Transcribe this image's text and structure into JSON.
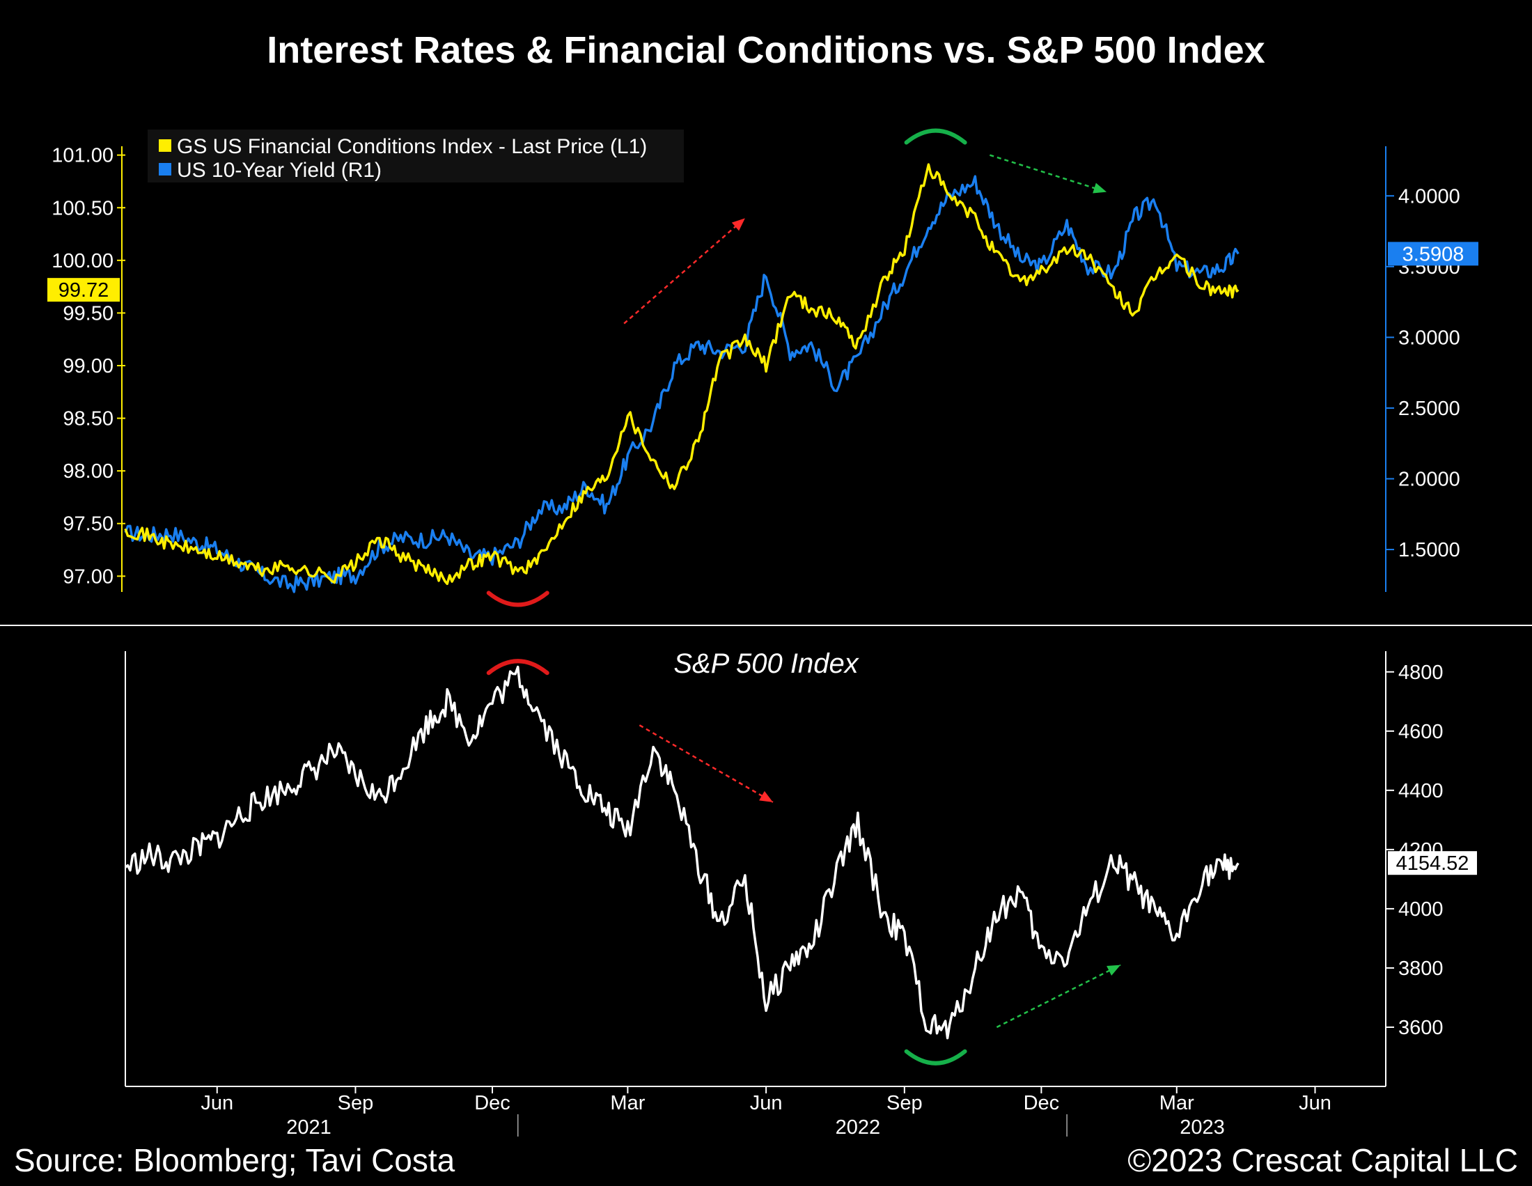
{
  "title": "Interest Rates & Financial Conditions vs. S&P 500 Index",
  "footer": {
    "source": "Source: Bloomberg; Tavi Costa",
    "copyright": "©2023 Crescat Capital LLC"
  },
  "colors": {
    "background": "#000000",
    "fci": "#ffee00",
    "yield": "#1a7ff0",
    "sp500": "#ffffff",
    "arrow_red": "#ff2a2a",
    "arrow_green": "#22c24a",
    "arc_red": "#e01a1a",
    "arc_green": "#16b04a"
  },
  "legend": {
    "items": [
      {
        "label": "GS US Financial Conditions Index - Last Price (L1)",
        "color": "#ffee00"
      },
      {
        "label": "US 10-Year Yield (R1)",
        "color": "#1a7ff0"
      }
    ],
    "position": "top-left"
  },
  "chart_data": [
    {
      "type": "line",
      "panel": "top",
      "title": "",
      "x_range": [
        "2021-04-15",
        "2023-08-01"
      ],
      "x_ticks": [
        "Jun",
        "Sep",
        "Dec",
        "Mar",
        "Jun",
        "Sep",
        "Dec",
        "Mar",
        "Jun"
      ],
      "x_years": [
        "2021",
        "2022",
        "2023"
      ],
      "left_axis": {
        "ticks": [
          "97.00",
          "97.50",
          "98.00",
          "98.50",
          "99.00",
          "99.50",
          "100.00",
          "100.50",
          "101.00"
        ],
        "ylim": [
          96.85,
          101.15
        ]
      },
      "right_axis": {
        "ticks": [
          "1.5000",
          "2.0000",
          "2.5000",
          "3.0000",
          "3.5000",
          "4.0000"
        ],
        "ylim": [
          1.2,
          4.4
        ]
      },
      "series": [
        {
          "name": "GS US Financial Conditions Index - Last Price (L1)",
          "axis": "left",
          "last_value": "99.72",
          "points": [
            [
              "2021-04-15",
              97.45
            ],
            [
              "2021-05-01",
              97.38
            ],
            [
              "2021-05-15",
              97.3
            ],
            [
              "2021-06-01",
              97.25
            ],
            [
              "2021-06-15",
              97.18
            ],
            [
              "2021-07-01",
              97.12
            ],
            [
              "2021-07-15",
              97.05
            ],
            [
              "2021-08-01",
              97.1
            ],
            [
              "2021-08-15",
              97.04
            ],
            [
              "2021-09-01",
              97.0
            ],
            [
              "2021-09-15",
              97.12
            ],
            [
              "2021-10-01",
              97.35
            ],
            [
              "2021-10-15",
              97.2
            ],
            [
              "2021-11-01",
              97.05
            ],
            [
              "2021-11-15",
              96.98
            ],
            [
              "2021-12-01",
              97.12
            ],
            [
              "2021-12-15",
              97.2
            ],
            [
              "2022-01-01",
              97.05
            ],
            [
              "2022-01-15",
              97.15
            ],
            [
              "2022-02-01",
              97.55
            ],
            [
              "2022-02-15",
              97.8
            ],
            [
              "2022-03-01",
              97.95
            ],
            [
              "2022-03-15",
              98.55
            ],
            [
              "2022-04-01",
              98.1
            ],
            [
              "2022-04-15",
              97.85
            ],
            [
              "2022-05-01",
              98.3
            ],
            [
              "2022-05-15",
              99.05
            ],
            [
              "2022-06-01",
              99.25
            ],
            [
              "2022-06-15",
              99.0
            ],
            [
              "2022-07-01",
              99.7
            ],
            [
              "2022-07-15",
              99.55
            ],
            [
              "2022-08-01",
              99.45
            ],
            [
              "2022-08-15",
              99.2
            ],
            [
              "2022-09-01",
              99.8
            ],
            [
              "2022-09-15",
              100.1
            ],
            [
              "2022-10-01",
              100.9
            ],
            [
              "2022-10-15",
              100.6
            ],
            [
              "2022-11-01",
              100.4
            ],
            [
              "2022-11-15",
              100.05
            ],
            [
              "2022-12-01",
              99.8
            ],
            [
              "2022-12-15",
              99.9
            ],
            [
              "2023-01-01",
              100.1
            ],
            [
              "2023-01-15",
              100.05
            ],
            [
              "2023-02-01",
              99.7
            ],
            [
              "2023-02-15",
              99.5
            ],
            [
              "2023-03-01",
              99.85
            ],
            [
              "2023-03-15",
              100.05
            ],
            [
              "2023-04-01",
              99.75
            ],
            [
              "2023-04-15",
              99.7
            ],
            [
              "2023-04-25",
              99.72
            ]
          ]
        },
        {
          "name": "US 10-Year Yield (R1)",
          "axis": "right",
          "last_value": "3.5908",
          "points": [
            [
              "2021-04-15",
              1.62
            ],
            [
              "2021-05-01",
              1.6
            ],
            [
              "2021-05-15",
              1.62
            ],
            [
              "2021-06-01",
              1.55
            ],
            [
              "2021-06-15",
              1.5
            ],
            [
              "2021-07-01",
              1.4
            ],
            [
              "2021-07-15",
              1.32
            ],
            [
              "2021-08-01",
              1.25
            ],
            [
              "2021-08-15",
              1.27
            ],
            [
              "2021-09-01",
              1.31
            ],
            [
              "2021-09-15",
              1.32
            ],
            [
              "2021-10-01",
              1.52
            ],
            [
              "2021-10-15",
              1.58
            ],
            [
              "2021-11-01",
              1.57
            ],
            [
              "2021-11-15",
              1.6
            ],
            [
              "2021-12-01",
              1.45
            ],
            [
              "2021-12-15",
              1.45
            ],
            [
              "2022-01-01",
              1.55
            ],
            [
              "2022-01-15",
              1.78
            ],
            [
              "2022-02-01",
              1.8
            ],
            [
              "2022-02-15",
              1.95
            ],
            [
              "2022-03-01",
              1.8
            ],
            [
              "2022-03-15",
              2.15
            ],
            [
              "2022-04-01",
              2.4
            ],
            [
              "2022-04-15",
              2.8
            ],
            [
              "2022-05-01",
              2.95
            ],
            [
              "2022-05-15",
              2.9
            ],
            [
              "2022-06-01",
              2.95
            ],
            [
              "2022-06-15",
              3.45
            ],
            [
              "2022-07-01",
              2.9
            ],
            [
              "2022-07-15",
              2.95
            ],
            [
              "2022-08-01",
              2.65
            ],
            [
              "2022-08-15",
              2.85
            ],
            [
              "2022-09-01",
              3.2
            ],
            [
              "2022-09-15",
              3.45
            ],
            [
              "2022-10-01",
              3.8
            ],
            [
              "2022-10-15",
              4.0
            ],
            [
              "2022-11-01",
              4.1
            ],
            [
              "2022-11-15",
              3.8
            ],
            [
              "2022-12-01",
              3.55
            ],
            [
              "2022-12-15",
              3.5
            ],
            [
              "2023-01-01",
              3.8
            ],
            [
              "2023-01-15",
              3.5
            ],
            [
              "2023-02-01",
              3.45
            ],
            [
              "2023-02-15",
              3.85
            ],
            [
              "2023-03-01",
              3.98
            ],
            [
              "2023-03-15",
              3.5
            ],
            [
              "2023-04-01",
              3.45
            ],
            [
              "2023-04-15",
              3.5
            ],
            [
              "2023-04-25",
              3.59
            ]
          ]
        }
      ],
      "annotations": [
        {
          "kind": "arc",
          "shape": "bottom",
          "color": "red",
          "at": "2022-01-01"
        },
        {
          "kind": "arc",
          "shape": "top",
          "color": "green",
          "at": "2022-10-15"
        },
        {
          "kind": "arrow",
          "direction": "up",
          "color": "red",
          "from": "2022-03-01",
          "to": "2022-06-01"
        },
        {
          "kind": "arrow",
          "direction": "down",
          "color": "green",
          "from": "2022-11-20",
          "to": "2023-02-01"
        }
      ]
    },
    {
      "type": "line",
      "panel": "bottom",
      "title": "S&P 500 Index",
      "right_axis": {
        "ticks": [
          "3600",
          "3800",
          "4000",
          "4200",
          "4400",
          "4600",
          "4800"
        ],
        "ylim": [
          3400,
          4870
        ]
      },
      "series": [
        {
          "name": "S&P 500 Index",
          "axis": "right",
          "last_value": "4154.52",
          "points": [
            [
              "2021-04-15",
              4140
            ],
            [
              "2021-05-01",
              4180
            ],
            [
              "2021-05-15",
              4160
            ],
            [
              "2021-06-01",
              4200
            ],
            [
              "2021-06-15",
              4240
            ],
            [
              "2021-07-01",
              4320
            ],
            [
              "2021-07-15",
              4370
            ],
            [
              "2021-08-01",
              4410
            ],
            [
              "2021-08-15",
              4460
            ],
            [
              "2021-09-01",
              4530
            ],
            [
              "2021-09-15",
              4450
            ],
            [
              "2021-10-01",
              4370
            ],
            [
              "2021-10-15",
              4470
            ],
            [
              "2021-11-01",
              4620
            ],
            [
              "2021-11-15",
              4700
            ],
            [
              "2021-12-01",
              4580
            ],
            [
              "2021-12-15",
              4700
            ],
            [
              "2022-01-01",
              4790
            ],
            [
              "2022-01-15",
              4660
            ],
            [
              "2022-02-01",
              4500
            ],
            [
              "2022-02-15",
              4400
            ],
            [
              "2022-03-01",
              4330
            ],
            [
              "2022-03-15",
              4260
            ],
            [
              "2022-04-01",
              4550
            ],
            [
              "2022-04-15",
              4400
            ],
            [
              "2022-05-01",
              4150
            ],
            [
              "2022-05-15",
              3950
            ],
            [
              "2022-06-01",
              4100
            ],
            [
              "2022-06-15",
              3680
            ],
            [
              "2022-07-01",
              3820
            ],
            [
              "2022-07-15",
              3870
            ],
            [
              "2022-08-01",
              4120
            ],
            [
              "2022-08-15",
              4290
            ],
            [
              "2022-09-01",
              3980
            ],
            [
              "2022-09-15",
              3900
            ],
            [
              "2022-10-01",
              3600
            ],
            [
              "2022-10-15",
              3590
            ],
            [
              "2022-11-01",
              3800
            ],
            [
              "2022-11-15",
              3980
            ],
            [
              "2022-12-01",
              4060
            ],
            [
              "2022-12-15",
              3850
            ],
            [
              "2023-01-01",
              3840
            ],
            [
              "2023-01-15",
              4000
            ],
            [
              "2023-02-01",
              4160
            ],
            [
              "2023-02-15",
              4080
            ],
            [
              "2023-03-01",
              3980
            ],
            [
              "2023-03-15",
              3900
            ],
            [
              "2023-04-01",
              4110
            ],
            [
              "2023-04-15",
              4140
            ],
            [
              "2023-04-25",
              4154
            ]
          ]
        }
      ],
      "annotations": [
        {
          "kind": "arc",
          "shape": "top",
          "color": "red",
          "at": "2022-01-01"
        },
        {
          "kind": "arc",
          "shape": "bottom",
          "color": "green",
          "at": "2022-10-15"
        },
        {
          "kind": "arrow",
          "direction": "down",
          "color": "red",
          "from": "2022-04-15",
          "to": "2022-07-15"
        },
        {
          "kind": "arrow",
          "direction": "up",
          "color": "green",
          "from": "2022-11-20",
          "to": "2023-02-01"
        }
      ]
    }
  ]
}
